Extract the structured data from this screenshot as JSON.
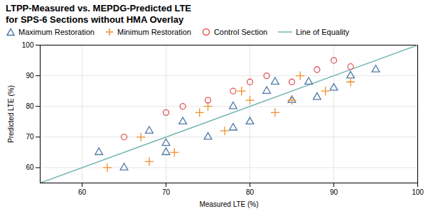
{
  "chart_data": {
    "type": "scatter",
    "title": "LTPP-Measured vs. MEPDG-Predicted LTE\nfor SPS-6 Sections without HMA Overlay",
    "xlabel": "Measured LTE (%)",
    "ylabel": "Predicted LTE (%)",
    "xlim": [
      55,
      100
    ],
    "ylim": [
      55,
      100
    ],
    "xticks": [
      60,
      70,
      80,
      90,
      100
    ],
    "yticks": [
      60,
      70,
      80,
      90,
      100
    ],
    "grid": true,
    "series": [
      {
        "name": "Maximum Restoration",
        "marker": "triangle",
        "x": [
          62,
          65,
          68,
          70,
          72,
          75,
          78,
          80,
          82,
          85,
          87,
          90,
          92,
          95,
          78,
          83,
          70,
          88
        ],
        "values": [
          65,
          60,
          72,
          68,
          75,
          70,
          80,
          75,
          85,
          82,
          88,
          86,
          90,
          92,
          73,
          88,
          65,
          83
        ]
      },
      {
        "name": "Minimum Restoration",
        "marker": "plus",
        "x": [
          63,
          67,
          71,
          74,
          77,
          80,
          83,
          86,
          89,
          92,
          75,
          68,
          85,
          79
        ],
        "values": [
          60,
          70,
          65,
          78,
          72,
          82,
          78,
          90,
          85,
          88,
          80,
          62,
          82,
          85
        ]
      },
      {
        "name": "Control Section",
        "marker": "circle",
        "x": [
          65,
          70,
          72,
          75,
          78,
          80,
          82,
          85,
          88,
          90,
          92
        ],
        "values": [
          70,
          78,
          80,
          82,
          85,
          88,
          90,
          88,
          92,
          95,
          93
        ]
      },
      {
        "name": "Line of Equality",
        "type": "line",
        "line_style": "solid",
        "x": [
          55,
          100
        ],
        "values": [
          55,
          100
        ]
      }
    ]
  }
}
